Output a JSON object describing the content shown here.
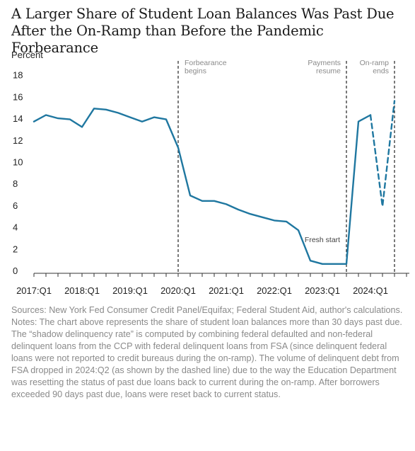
{
  "title": "A Larger Share of Student Loan Balances Was Past Due After the On-Ramp than Before the Pandemic Forbearance",
  "sources": "Sources: New York Fed Consumer Credit Panel/Equifax; Federal Student Aid, author's calculations.",
  "notes": "Notes: The chart above represents the share of student loan balances more than 30 days past due. The “shadow delinquency rate” is computed by combining federal defaulted and non-federal delinquent loans from the CCP with federal delinquent loans from FSA (since delinquent federal loans were not reported to credit bureaus during the on-ramp). The volume of delinquent debt from FSA dropped in 2024:Q2 (as shown by the dashed line) due to the way the Education Department was resetting the status of past due loans back to current during the on-ramp. After borrowers exceeded 90 days past due, loans were reset back to current status.",
  "chart_data": {
    "type": "line",
    "title": "A Larger Share of Student Loan Balances Was Past Due After the On-Ramp than Before the Pandemic Forbearance",
    "ylabel": "Percent",
    "xlabel": "",
    "ylim": [
      0,
      19
    ],
    "yticks": [
      0,
      2,
      4,
      6,
      8,
      10,
      12,
      14,
      16,
      18
    ],
    "xticks": [
      "2017:Q1",
      "2018:Q1",
      "2019:Q1",
      "2020:Q1",
      "2021:Q1",
      "2022:Q1",
      "2023:Q1",
      "2024:Q1"
    ],
    "grid": false,
    "line_color": "#1f77a0",
    "series": [
      {
        "x": [
          "2017:Q1",
          "2017:Q2",
          "2017:Q3",
          "2017:Q4",
          "2018:Q1",
          "2018:Q2",
          "2018:Q3",
          "2018:Q4",
          "2019:Q1",
          "2019:Q2",
          "2019:Q3",
          "2019:Q4",
          "2020:Q1",
          "2020:Q2",
          "2020:Q3",
          "2020:Q4",
          "2021:Q1",
          "2021:Q2",
          "2021:Q3",
          "2021:Q4",
          "2022:Q1",
          "2022:Q2",
          "2022:Q3",
          "2022:Q4",
          "2023:Q1",
          "2023:Q2",
          "2023:Q3",
          "2023:Q4",
          "2024:Q1"
        ],
        "values": [
          13.7,
          14.3,
          14.0,
          13.9,
          13.2,
          14.9,
          14.8,
          14.5,
          14.1,
          13.7,
          14.1,
          13.9,
          11.3,
          6.9,
          6.4,
          6.4,
          6.1,
          5.6,
          5.2,
          4.9,
          4.6,
          4.5,
          3.7,
          0.9,
          0.6,
          0.6,
          0.6,
          13.7,
          14.3
        ]
      },
      {
        "style": "dashed",
        "x": [
          "2024:Q1",
          "2024:Q2",
          "2024:Q3"
        ],
        "values": [
          14.3,
          5.9,
          15.6
        ]
      }
    ],
    "events": [
      {
        "x": "2020:Q1",
        "label_lines": [
          "Forbearance",
          "begins"
        ],
        "align": "left"
      },
      {
        "x": "2023:Q3",
        "label_lines": [
          "Payments",
          "resume"
        ],
        "align": "right"
      },
      {
        "x": "2024:Q3",
        "label_lines": [
          "On-ramp",
          "ends"
        ],
        "align": "right"
      }
    ],
    "annotations": [
      {
        "text": "Fresh start",
        "x": "2023:Q1",
        "y": 2.6
      }
    ]
  }
}
